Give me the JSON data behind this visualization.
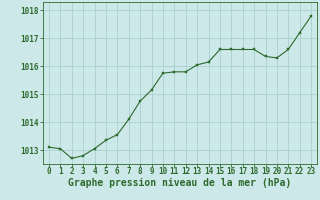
{
  "x": [
    0,
    1,
    2,
    3,
    4,
    5,
    6,
    7,
    8,
    9,
    10,
    11,
    12,
    13,
    14,
    15,
    16,
    17,
    18,
    19,
    20,
    21,
    22,
    23
  ],
  "y": [
    1013.1,
    1013.05,
    1012.7,
    1012.8,
    1013.05,
    1013.35,
    1013.55,
    1014.1,
    1014.75,
    1015.15,
    1015.75,
    1015.8,
    1015.8,
    1016.05,
    1016.15,
    1016.6,
    1016.6,
    1016.6,
    1016.6,
    1016.35,
    1016.3,
    1016.6,
    1017.2,
    1017.8
  ],
  "line_color": "#2d6a2d",
  "marker_color": "#2d6a2d",
  "bg_color": "#cce8e8",
  "grid_color": "#aacfcf",
  "text_color": "#2d6a2d",
  "xlabel": "Graphe pression niveau de la mer (hPa)",
  "ylim_min": 1012.5,
  "ylim_max": 1018.3,
  "yticks": [
    1013,
    1014,
    1015,
    1016,
    1017,
    1018
  ],
  "xticks": [
    0,
    1,
    2,
    3,
    4,
    5,
    6,
    7,
    8,
    9,
    10,
    11,
    12,
    13,
    14,
    15,
    16,
    17,
    18,
    19,
    20,
    21,
    22,
    23
  ],
  "title_fontsize": 7,
  "tick_fontsize": 5.5
}
